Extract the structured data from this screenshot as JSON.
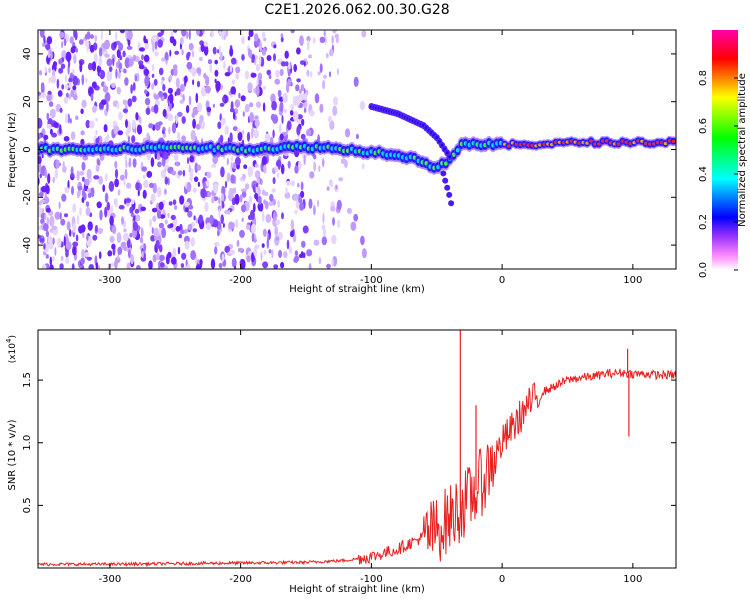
{
  "figure_title": "C2E1.2026.062.00.30.G28",
  "chart_data": [
    {
      "type": "heatmap",
      "title": "C2E1.2026.062.00.30.G28",
      "xlabel": "Height of straight line (km)",
      "ylabel": "Frequency (Hz)",
      "xlim": [
        -355,
        133
      ],
      "ylim": [
        -50,
        50
      ],
      "xticks": [
        -300,
        -200,
        -100,
        0,
        100
      ],
      "yticks": [
        -40,
        -20,
        0,
        20,
        40
      ],
      "colorbar": {
        "label": "Normalized spectral amplitude",
        "range": [
          0,
          1
        ],
        "ticks": [
          0.0,
          0.2,
          0.4,
          0.6,
          0.8
        ],
        "colors": [
          "#ffffff",
          "#ff77ff",
          "#6600ff",
          "#0000ff",
          "#00ffff",
          "#00ff00",
          "#ffff00",
          "#ff0000",
          "#ff00aa"
        ]
      },
      "ridge": {
        "x": [
          -355,
          -300,
          -250,
          -200,
          -160,
          -140,
          -120,
          -100,
          -80,
          -60,
          -50,
          -40,
          -30,
          -20,
          -10,
          0,
          20,
          60,
          100,
          133
        ],
        "y": [
          0,
          0,
          1,
          0,
          1,
          1,
          0,
          -1,
          -2,
          -5,
          -8,
          -4,
          3,
          2,
          2,
          2,
          2,
          3,
          3,
          3
        ]
      },
      "secondary_ridge": {
        "x": [
          -100,
          -80,
          -60,
          -50,
          -40
        ],
        "y": [
          18,
          15,
          10,
          5,
          -3
        ]
      },
      "tail": {
        "x": [
          -45,
          -40,
          -38
        ],
        "y": [
          -10,
          -20,
          -25
        ]
      }
    },
    {
      "type": "line",
      "xlabel": "Height of straight line (km)",
      "ylabel": "SNR (10 * v/v)",
      "y_scale_label": "(x10",
      "y_scale_exponent": "4",
      "xlim": [
        -355,
        133
      ],
      "ylim": [
        0,
        1.9
      ],
      "xticks": [
        -300,
        -200,
        -100,
        0,
        100
      ],
      "yticks": [
        0.5,
        1.0,
        1.5
      ],
      "ytick_labels": [
        "0.5",
        "1.0",
        "1.5"
      ],
      "series": [
        {
          "name": "SNR",
          "color": "#e82020",
          "x": [
            -355,
            -300,
            -250,
            -200,
            -150,
            -120,
            -100,
            -90,
            -80,
            -70,
            -60,
            -50,
            -45,
            -40,
            -35,
            -30,
            -25,
            -20,
            -15,
            -10,
            -5,
            0,
            10,
            20,
            30,
            40,
            50,
            60,
            70,
            80,
            90,
            100,
            110,
            120,
            133
          ],
          "y": [
            0.03,
            0.03,
            0.035,
            0.04,
            0.045,
            0.06,
            0.09,
            0.12,
            0.15,
            0.2,
            0.25,
            0.3,
            0.35,
            0.4,
            0.45,
            0.5,
            0.55,
            0.62,
            0.7,
            0.8,
            0.9,
            1.0,
            1.15,
            1.3,
            1.4,
            1.45,
            1.5,
            1.52,
            1.53,
            1.55,
            1.56,
            1.55,
            1.55,
            1.54,
            1.54
          ]
        }
      ],
      "annotations": [
        {
          "x": -32,
          "y": 1.9,
          "text": "spike"
        },
        {
          "x": -20,
          "y": 1.3,
          "text": "spike"
        },
        {
          "x": 96,
          "y": 1.75,
          "text": "spike"
        },
        {
          "x": 97,
          "y": 1.05,
          "text": "dip"
        }
      ]
    }
  ]
}
